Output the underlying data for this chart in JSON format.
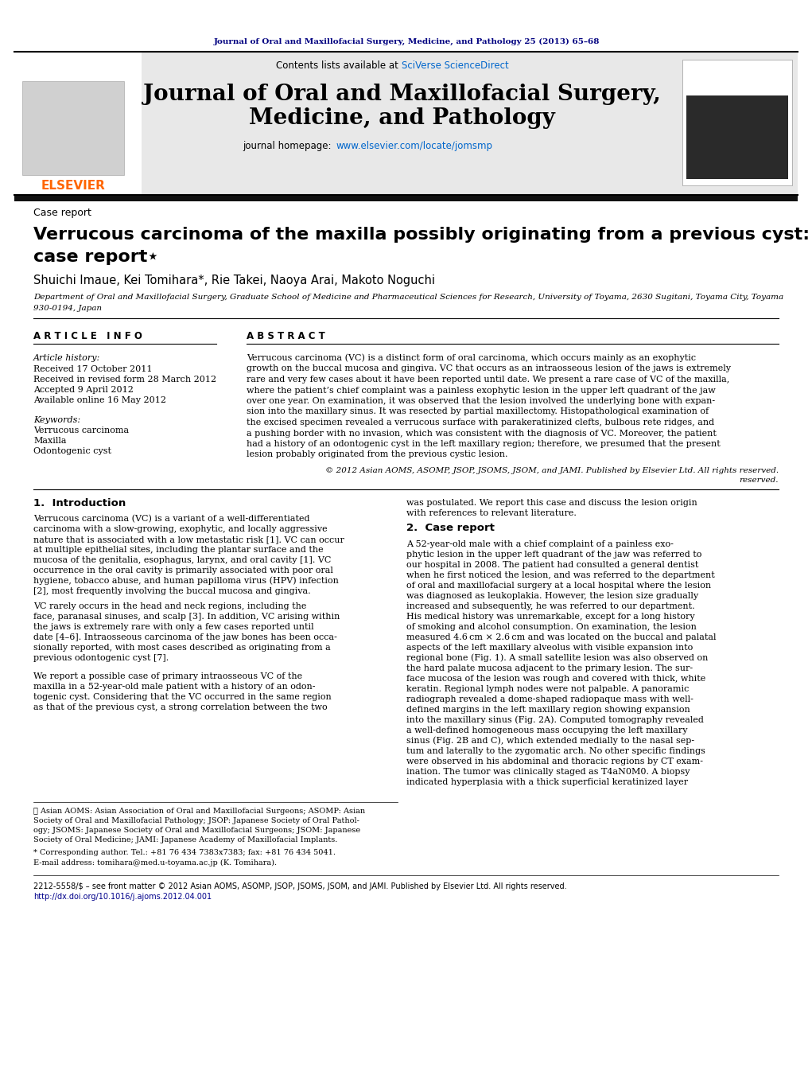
{
  "page_bg": "#ffffff",
  "top_journal_ref": "Journal of Oral and Maxillofacial Surgery, Medicine, and Pathology 25 (2013) 65–68",
  "header_bg": "#e8e8e8",
  "contents_text": "Contents lists available at ",
  "sciverse_text": "SciVerse ScienceDirect",
  "journal_title_line1": "Journal of Oral and Maxillofacial Surgery,",
  "journal_title_line2": "Medicine, and Pathology",
  "homepage_label": "journal homepage: ",
  "homepage_url": "www.elsevier.com/locate/jomsmp",
  "case_report_label": "Case report",
  "paper_title_line1": "Verrucous carcinoma of the maxilla possibly originating from a previous cyst: A",
  "paper_title_line2": "case report⋆",
  "authors": "Shuichi Imaue, Kei Tomihara*, Rie Takei, Naoya Arai, Makoto Noguchi",
  "affil_line1": "Department of Oral and Maxillofacial Surgery, Graduate School of Medicine and Pharmaceutical Sciences for Research, University of Toyama, 2630 Sugitani, Toyama City, Toyama",
  "affil_line2": "930-0194, Japan",
  "article_info_title": "A R T I C L E   I N F O",
  "abstract_title": "A B S T R A C T",
  "article_history_label": "Article history:",
  "received": "Received 17 October 2011",
  "received_revised": "Received in revised form 28 March 2012",
  "accepted": "Accepted 9 April 2012",
  "available": "Available online 16 May 2012",
  "keywords_label": "Keywords:",
  "keyword1": "Verrucous carcinoma",
  "keyword2": "Maxilla",
  "keyword3": "Odontogenic cyst",
  "copyright_text": "© 2012 Asian AOMS, ASOMP, JSOP, JSOMS, JSOM, and JAMI. Published by Elsevier Ltd. All rights reserved.",
  "intro_title": "1.  Introduction",
  "case_report_title": "2.  Case report",
  "footnote_star_lines": [
    "⋆ Asian AOMS: Asian Association of Oral and Maxillofacial Surgeons; ASOMP: Asian",
    "Society of Oral and Maxillofacial Pathology; JSOP: Japanese Society of Oral Pathol-",
    "ogy; JSOMS: Japanese Society of Oral and Maxillofacial Surgeons; JSOM: Japanese",
    "Society of Oral Medicine; JAMI: Japanese Academy of Maxillofacial Implants."
  ],
  "footnote_corresponding": "* Corresponding author. Tel.: +81 76 434 7383x7383; fax: +81 76 434 5041.",
  "footnote_email": "E-mail address: tomihara@med.u-toyama.ac.jp (K. Tomihara).",
  "bottom_issn": "2212-5558/$ – see front matter © 2012 Asian AOMS, ASOMP, JSOP, JSOMS, JSOM, and JAMI. Published by Elsevier Ltd. All rights reserved.",
  "bottom_doi": "http://dx.doi.org/10.1016/j.ajoms.2012.04.001",
  "link_color": "#00008B",
  "sciverse_color": "#0066CC",
  "elsevier_orange": "#FF6600",
  "dark_navy": "#000080",
  "text_black": "#000000",
  "abstract_lines": [
    "Verrucous carcinoma (VC) is a distinct form of oral carcinoma, which occurs mainly as an exophytic",
    "growth on the buccal mucosa and gingiva. VC that occurs as an intraosseous lesion of the jaws is extremely",
    "rare and very few cases about it have been reported until date. We present a rare case of VC of the maxilla,",
    "where the patient’s chief complaint was a painless exophytic lesion in the upper left quadrant of the jaw",
    "over one year. On examination, it was observed that the lesion involved the underlying bone with expan-",
    "sion into the maxillary sinus. It was resected by partial maxillectomy. Histopathological examination of",
    "the excised specimen revealed a verrucous surface with parakeratinized clefts, bulbous rete ridges, and",
    "a pushing border with no invasion, which was consistent with the diagnosis of VC. Moreover, the patient",
    "had a history of an odontogenic cyst in the left maxillary region; therefore, we presumed that the present",
    "lesion probably originated from the previous cystic lesion."
  ],
  "intro_col1_p1": [
    "Verrucous carcinoma (VC) is a variant of a well-differentiated",
    "carcinoma with a slow-growing, exophytic, and locally aggressive",
    "nature that is associated with a low metastatic risk [1]. VC can occur",
    "at multiple epithelial sites, including the plantar surface and the",
    "mucosa of the genitalia, esophagus, larynx, and oral cavity [1]. VC",
    "occurrence in the oral cavity is primarily associated with poor oral",
    "hygiene, tobacco abuse, and human papilloma virus (HPV) infection",
    "[2], most frequently involving the buccal mucosa and gingiva."
  ],
  "intro_col1_p2": [
    "VC rarely occurs in the head and neck regions, including the",
    "face, paranasal sinuses, and scalp [3]. In addition, VC arising within",
    "the jaws is extremely rare with only a few cases reported until",
    "date [4–6]. Intraosseous carcinoma of the jaw bones has been occa-",
    "sionally reported, with most cases described as originating from a",
    "previous odontogenic cyst [7]."
  ],
  "intro_col1_p3": [
    "We report a possible case of primary intraosseous VC of the",
    "maxilla in a 52-year-old male patient with a history of an odon-",
    "togenic cyst. Considering that the VC occurred in the same region",
    "as that of the previous cyst, a strong correlation between the two"
  ],
  "right_intro_lines": [
    "was postulated. We report this case and discuss the lesion origin",
    "with references to relevant literature."
  ],
  "case_report_lines": [
    "A 52-year-old male with a chief complaint of a painless exo-",
    "phytic lesion in the upper left quadrant of the jaw was referred to",
    "our hospital in 2008. The patient had consulted a general dentist",
    "when he first noticed the lesion, and was referred to the department",
    "of oral and maxillofacial surgery at a local hospital where the lesion",
    "was diagnosed as leukoplakia. However, the lesion size gradually",
    "increased and subsequently, he was referred to our department.",
    "His medical history was unremarkable, except for a long history",
    "of smoking and alcohol consumption. On examination, the lesion",
    "measured 4.6 cm × 2.6 cm and was located on the buccal and palatal",
    "aspects of the left maxillary alveolus with visible expansion into",
    "regional bone (Fig. 1). A small satellite lesion was also observed on",
    "the hard palate mucosa adjacent to the primary lesion. The sur-",
    "face mucosa of the lesion was rough and covered with thick, white",
    "keratin. Regional lymph nodes were not palpable. A panoramic",
    "radiograph revealed a dome-shaped radiopaque mass with well-",
    "defined margins in the left maxillary region showing expansion",
    "into the maxillary sinus (Fig. 2A). Computed tomography revealed",
    "a well-defined homogeneous mass occupying the left maxillary",
    "sinus (Fig. 2B and C), which extended medially to the nasal sep-",
    "tum and laterally to the zygomatic arch. No other specific findings",
    "were observed in his abdominal and thoracic regions by CT exam-",
    "ination. The tumor was clinically staged as T4aN0M0. A biopsy",
    "indicated hyperplasia with a thick superficial keratinized layer"
  ]
}
